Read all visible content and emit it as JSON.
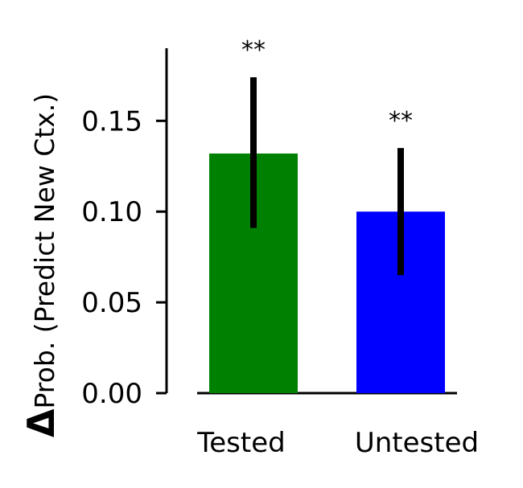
{
  "chart_data": {
    "type": "bar",
    "title": "",
    "xlabel": "",
    "ylabel_symbol": "Δ",
    "ylabel": "Prob. (Predict New Ctx.)",
    "categories": [
      "Tested",
      "Untested"
    ],
    "values": [
      0.132,
      0.1
    ],
    "error_low": [
      0.091,
      0.065
    ],
    "error_high": [
      0.174,
      0.135
    ],
    "significance": [
      "**",
      "**"
    ],
    "colors": [
      "#008000",
      "#0000ff"
    ],
    "ylim": [
      0.0,
      0.19
    ],
    "yticks": [
      0.0,
      0.05,
      0.1,
      0.15
    ],
    "ytick_labels": [
      "0.00",
      "0.05",
      "0.10",
      "0.15"
    ],
    "grid": false,
    "legend": "none"
  }
}
